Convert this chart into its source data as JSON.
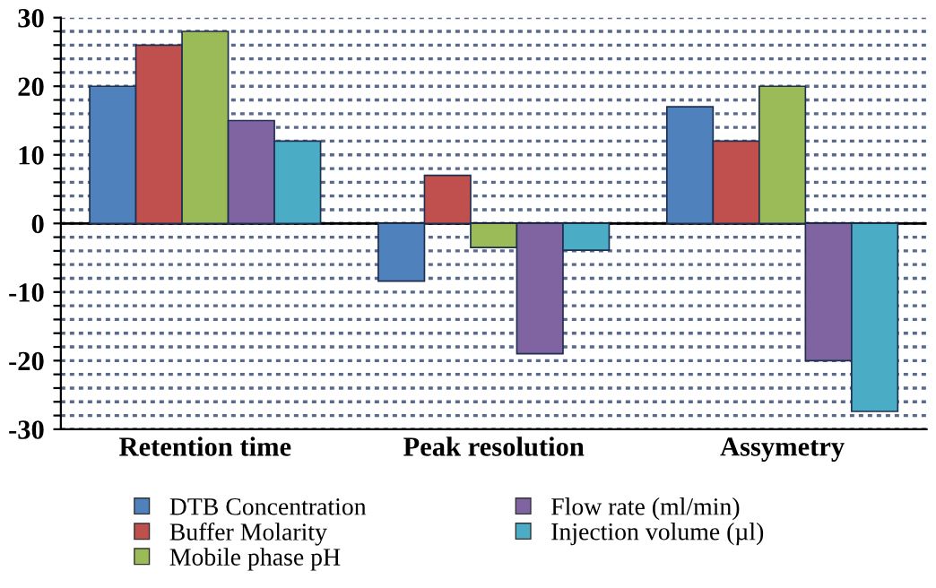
{
  "chart_data": {
    "type": "bar",
    "categories": [
      "Retention time",
      "Peak resolution",
      "Assymetry"
    ],
    "series": [
      {
        "name": "DTB Concentration",
        "color": "#4f81bd",
        "values": [
          20,
          -8.4,
          17
        ]
      },
      {
        "name": "Buffer Molarity",
        "color": "#c0504d",
        "values": [
          26,
          7,
          12
        ]
      },
      {
        "name": "Mobile phase pH",
        "color": "#9bbb59",
        "values": [
          28,
          -3.5,
          20
        ]
      },
      {
        "name": "Flow rate (ml/min)",
        "color": "#8064a2",
        "values": [
          15,
          -19,
          -20
        ]
      },
      {
        "name": "Injection volume (µl)",
        "color": "#4bacc6",
        "values": [
          12,
          -3.9,
          -27.4
        ]
      }
    ],
    "ylim": [
      -30,
      30
    ],
    "yticks": [
      -30,
      {
        "value": -28,
        "label": null
      },
      {
        "value": -26,
        "label": null
      },
      {
        "value": -24,
        "label": null
      },
      {
        "value": -22,
        "label": null
      },
      -20,
      {
        "value": -18,
        "label": null
      },
      {
        "value": -16,
        "label": null
      },
      {
        "value": -14,
        "label": null
      },
      {
        "value": -12,
        "label": null
      },
      -10,
      {
        "value": -8,
        "label": null
      },
      {
        "value": -6,
        "label": null
      },
      {
        "value": -4,
        "label": null
      },
      {
        "value": -2,
        "label": null
      },
      0,
      {
        "value": 2,
        "label": null
      },
      {
        "value": 4,
        "label": null
      },
      {
        "value": 6,
        "label": null
      },
      {
        "value": 8,
        "label": null
      },
      10,
      {
        "value": 12,
        "label": null
      },
      {
        "value": 14,
        "label": null
      },
      {
        "value": 16,
        "label": null
      },
      {
        "value": 18,
        "label": null
      },
      20,
      {
        "value": 22,
        "label": null
      },
      {
        "value": 24,
        "label": null
      },
      {
        "value": 26,
        "label": null
      },
      {
        "value": 28,
        "label": null
      },
      30
    ],
    "grid": "y",
    "legend": "bottom"
  }
}
